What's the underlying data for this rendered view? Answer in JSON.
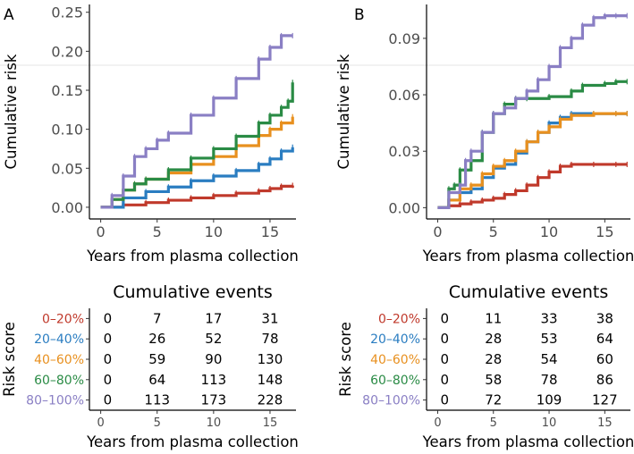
{
  "chart_data": [
    {
      "panel": "A",
      "type": "line",
      "title": "",
      "xlabel": "Years from plasma collection",
      "ylabel": "Cumulative risk",
      "xlim": [
        -1,
        17.3
      ],
      "ylim": [
        -0.015,
        0.26
      ],
      "xticks": [
        0,
        5,
        10,
        15
      ],
      "yticks": [
        0.0,
        0.05,
        0.1,
        0.15,
        0.2,
        0.25
      ],
      "ytick_labels": [
        "0.00",
        "0.05",
        "0.10",
        "0.15",
        "0.20",
        "0.25"
      ],
      "xtick_labels": [
        "0",
        "5",
        "10",
        "15"
      ],
      "series": [
        {
          "name": "0-20%",
          "color": "#c0392b",
          "x": [
            0,
            2,
            4,
            6,
            8,
            10,
            12,
            14,
            15,
            16,
            17
          ],
          "y": [
            0,
            0.003,
            0.006,
            0.009,
            0.012,
            0.015,
            0.018,
            0.021,
            0.024,
            0.027,
            0.028
          ]
        },
        {
          "name": "20-40%",
          "color": "#2a7dc1",
          "x": [
            0,
            2,
            4,
            6,
            8,
            10,
            12,
            14,
            15,
            16,
            17
          ],
          "y": [
            0,
            0.012,
            0.02,
            0.026,
            0.034,
            0.04,
            0.047,
            0.055,
            0.062,
            0.072,
            0.077
          ]
        },
        {
          "name": "40-60%",
          "color": "#e8901f",
          "x": [
            0,
            1,
            2,
            3,
            4,
            6,
            8,
            10,
            12,
            14,
            15,
            16,
            17
          ],
          "y": [
            0,
            0.01,
            0.022,
            0.03,
            0.036,
            0.044,
            0.055,
            0.065,
            0.079,
            0.092,
            0.1,
            0.108,
            0.116
          ]
        },
        {
          "name": "60-80%",
          "color": "#2a8b45",
          "x": [
            0,
            1,
            2,
            3,
            4,
            6,
            8,
            10,
            12,
            14,
            15,
            16,
            16.6,
            17
          ],
          "y": [
            0,
            0.01,
            0.022,
            0.03,
            0.036,
            0.048,
            0.063,
            0.075,
            0.091,
            0.108,
            0.118,
            0.128,
            0.136,
            0.16
          ]
        },
        {
          "name": "80-100%",
          "color": "#8a7fc4",
          "x": [
            0,
            1,
            2,
            3,
            4,
            5,
            6,
            8,
            10,
            12,
            14,
            15,
            16,
            17
          ],
          "y": [
            0,
            0.015,
            0.04,
            0.065,
            0.075,
            0.086,
            0.095,
            0.118,
            0.14,
            0.165,
            0.19,
            0.205,
            0.22,
            0.22
          ]
        }
      ],
      "table": {
        "title": "Cumulative events",
        "ylabel": "Risk score",
        "xlabel": "Years from plasma collection",
        "times": [
          0,
          5,
          10,
          15
        ],
        "time_labels": [
          "0",
          "5",
          "10",
          "15"
        ],
        "rows": [
          {
            "label": "0–20%",
            "values": [
              "0",
              "7",
              "17",
              "31"
            ]
          },
          {
            "label": "20–40%",
            "values": [
              "0",
              "26",
              "52",
              "78"
            ]
          },
          {
            "label": "40–60%",
            "values": [
              "0",
              "59",
              "90",
              "130"
            ]
          },
          {
            "label": "60–80%",
            "values": [
              "0",
              "64",
              "113",
              "148"
            ]
          },
          {
            "label": "80–100%",
            "values": [
              "0",
              "113",
              "173",
              "228"
            ]
          }
        ]
      }
    },
    {
      "panel": "B",
      "type": "line",
      "title": "",
      "xlabel": "Years from plasma collection",
      "ylabel": "Cumulative risk",
      "xlim": [
        -1,
        17.3
      ],
      "ylim": [
        -0.006,
        0.108
      ],
      "xticks": [
        0,
        5,
        10,
        15
      ],
      "yticks": [
        0.0,
        0.03,
        0.06,
        0.09
      ],
      "ytick_labels": [
        "0.00",
        "0.03",
        "0.06",
        "0.09"
      ],
      "xtick_labels": [
        "0",
        "5",
        "10",
        "15"
      ],
      "series": [
        {
          "name": "0-20%",
          "color": "#c0392b",
          "x": [
            0,
            1,
            2,
            3,
            4,
            5,
            6,
            7,
            8,
            9,
            10,
            11,
            12,
            14,
            16,
            17
          ],
          "y": [
            0,
            0.001,
            0.002,
            0.003,
            0.004,
            0.005,
            0.007,
            0.009,
            0.012,
            0.016,
            0.019,
            0.022,
            0.023,
            0.023,
            0.023,
            0.023
          ]
        },
        {
          "name": "20-40%",
          "color": "#2a7dc1",
          "x": [
            0,
            1,
            2,
            3,
            4,
            5,
            6,
            7,
            8,
            9,
            10,
            11,
            12,
            14,
            16,
            17
          ],
          "y": [
            0,
            0.004,
            0.008,
            0.01,
            0.016,
            0.021,
            0.023,
            0.029,
            0.035,
            0.04,
            0.045,
            0.048,
            0.05,
            0.05,
            0.05,
            0.05
          ]
        },
        {
          "name": "40-60%",
          "color": "#e8901f",
          "x": [
            0,
            1,
            2,
            3,
            4,
            5,
            6,
            7,
            8,
            9,
            10,
            11,
            12,
            14,
            16,
            17
          ],
          "y": [
            0,
            0.004,
            0.01,
            0.012,
            0.018,
            0.022,
            0.025,
            0.03,
            0.035,
            0.04,
            0.043,
            0.047,
            0.049,
            0.05,
            0.05,
            0.05
          ]
        },
        {
          "name": "60-80%",
          "color": "#2a8b45",
          "x": [
            0,
            1,
            1.5,
            2,
            3,
            4,
            5,
            6,
            7,
            8,
            10,
            12,
            13,
            15,
            16,
            17
          ],
          "y": [
            0,
            0.01,
            0.012,
            0.02,
            0.025,
            0.04,
            0.05,
            0.055,
            0.058,
            0.058,
            0.059,
            0.062,
            0.065,
            0.066,
            0.067,
            0.067
          ]
        },
        {
          "name": "80-100%",
          "color": "#8a7fc4",
          "x": [
            0,
            1,
            2,
            2.5,
            3,
            4,
            5,
            6,
            7,
            8,
            9,
            10,
            11,
            12,
            13,
            14,
            15,
            16,
            17
          ],
          "y": [
            0,
            0.008,
            0.012,
            0.025,
            0.03,
            0.04,
            0.05,
            0.053,
            0.058,
            0.062,
            0.068,
            0.075,
            0.085,
            0.09,
            0.097,
            0.101,
            0.102,
            0.102,
            0.102
          ]
        }
      ],
      "table": {
        "title": "Cumulative events",
        "ylabel": "Risk score",
        "xlabel": "Years from plasma collection",
        "times": [
          0,
          5,
          10,
          15
        ],
        "time_labels": [
          "0",
          "5",
          "10",
          "15"
        ],
        "rows": [
          {
            "label": "0–20%",
            "values": [
              "0",
              "11",
              "33",
              "38"
            ]
          },
          {
            "label": "20–40%",
            "values": [
              "0",
              "28",
              "53",
              "64"
            ]
          },
          {
            "label": "40–60%",
            "values": [
              "0",
              "28",
              "54",
              "60"
            ]
          },
          {
            "label": "60–80%",
            "values": [
              "0",
              "58",
              "78",
              "86"
            ]
          },
          {
            "label": "80–100%",
            "values": [
              "0",
              "72",
              "109",
              "127"
            ]
          }
        ]
      }
    }
  ]
}
